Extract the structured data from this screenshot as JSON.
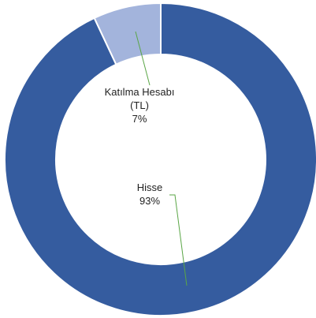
{
  "chart_data": {
    "type": "donut",
    "categories": [
      "Hisse",
      "Katılma Hesabı (TL)"
    ],
    "values": [
      93,
      7
    ],
    "value_labels": [
      "93%",
      "7%"
    ],
    "colors": [
      "#355c9f",
      "#a3b4dc"
    ]
  }
}
